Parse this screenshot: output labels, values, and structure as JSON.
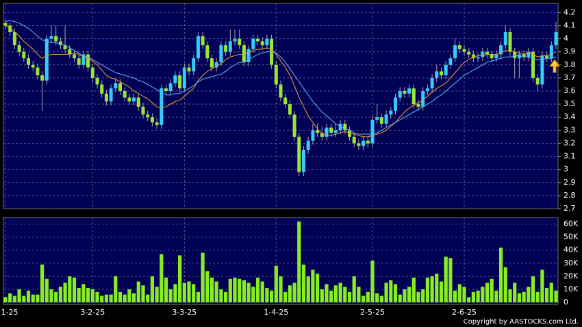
{
  "chart_data": {
    "type": "candlestick",
    "categories": [
      "1-25",
      null,
      null,
      null,
      null,
      null,
      null,
      null,
      null,
      null,
      null,
      null,
      null,
      null,
      null,
      null,
      null,
      null,
      null,
      "3-2-25",
      null,
      null,
      null,
      null,
      null,
      null,
      null,
      null,
      null,
      null,
      null,
      null,
      null,
      null,
      null,
      null,
      null,
      null,
      null,
      "3-3-25",
      null,
      null,
      null,
      null,
      null,
      null,
      null,
      null,
      null,
      null,
      null,
      null,
      null,
      null,
      null,
      null,
      null,
      null,
      null,
      "1-4-25",
      null,
      null,
      null,
      null,
      null,
      null,
      null,
      null,
      null,
      null,
      null,
      null,
      null,
      null,
      null,
      null,
      null,
      null,
      null,
      null,
      "2-5-25",
      null,
      null,
      null,
      null,
      null,
      null,
      null,
      null,
      null,
      null,
      null,
      null,
      null,
      null,
      null,
      null,
      null,
      null,
      null,
      "2-6-25",
      null,
      null,
      null,
      null,
      null,
      null,
      null,
      null,
      null,
      null,
      null,
      null,
      null,
      null,
      null,
      null,
      null,
      null,
      null,
      null
    ],
    "open": [
      4.12,
      4.1,
      4.05,
      3.95,
      3.9,
      3.85,
      3.8,
      3.78,
      3.72,
      3.68,
      4.0,
      4.02,
      3.98,
      3.95,
      3.92,
      3.88,
      3.85,
      3.8,
      3.88,
      3.78,
      3.7,
      3.65,
      3.58,
      3.52,
      3.62,
      3.66,
      3.6,
      3.55,
      3.52,
      3.55,
      3.48,
      3.42,
      3.4,
      3.36,
      3.34,
      3.62,
      3.6,
      3.66,
      3.72,
      3.62,
      3.78,
      3.75,
      3.85,
      4.02,
      3.95,
      3.85,
      3.78,
      3.82,
      3.95,
      3.9,
      3.98,
      4.0,
      3.95,
      3.82,
      3.92,
      4.0,
      3.98,
      3.95,
      4.0,
      3.8,
      3.65,
      3.55,
      3.5,
      3.42,
      3.25,
      2.98,
      3.15,
      3.22,
      3.3,
      3.28,
      3.25,
      3.32,
      3.28,
      3.3,
      3.35,
      3.3,
      3.25,
      3.2,
      3.18,
      3.22,
      3.2,
      3.38,
      3.4,
      3.35,
      3.42,
      3.45,
      3.55,
      3.6,
      3.58,
      3.62,
      3.5,
      3.48,
      3.6,
      3.62,
      3.7,
      3.75,
      3.72,
      3.8,
      3.85,
      3.95,
      3.92,
      3.9,
      3.88,
      3.85,
      3.86,
      3.9,
      3.88,
      3.85,
      3.88,
      3.95,
      4.05,
      3.9,
      3.85,
      3.88,
      3.86,
      3.9,
      3.7,
      3.65,
      3.87,
      3.85,
      3.95
    ],
    "high": [
      4.15,
      4.12,
      4.08,
      3.98,
      3.93,
      3.88,
      3.83,
      3.81,
      3.75,
      4.03,
      4.1,
      4.1,
      4.01,
      4.1,
      3.95,
      3.91,
      3.88,
      3.91,
      3.91,
      3.81,
      3.73,
      3.68,
      3.61,
      3.65,
      3.69,
      3.69,
      3.63,
      3.58,
      3.58,
      3.58,
      3.51,
      3.45,
      3.43,
      3.39,
      3.65,
      3.65,
      3.69,
      3.75,
      3.75,
      3.81,
      3.81,
      3.88,
      4.05,
      4.05,
      3.98,
      3.88,
      3.85,
      3.98,
      3.98,
      4.07,
      4.07,
      4.07,
      3.98,
      3.95,
      4.03,
      4.03,
      4.01,
      4.03,
      4.03,
      3.83,
      3.68,
      3.58,
      3.53,
      3.45,
      3.28,
      3.18,
      3.25,
      3.35,
      3.35,
      3.33,
      3.35,
      3.35,
      3.35,
      3.38,
      3.38,
      3.33,
      3.28,
      3.23,
      3.25,
      3.25,
      3.41,
      3.5,
      3.43,
      3.45,
      3.48,
      3.58,
      3.63,
      3.63,
      3.65,
      3.65,
      3.53,
      3.63,
      3.65,
      3.73,
      3.8,
      3.78,
      3.83,
      3.88,
      4.0,
      3.98,
      3.95,
      3.93,
      3.91,
      3.89,
      3.93,
      3.93,
      3.91,
      3.91,
      3.98,
      4.1,
      4.08,
      3.93,
      3.91,
      3.91,
      3.93,
      3.93,
      3.73,
      3.9,
      3.9,
      3.98,
      4.13
    ],
    "low": [
      4.07,
      4.02,
      3.92,
      3.87,
      3.82,
      3.77,
      3.75,
      3.69,
      3.45,
      3.65,
      3.97,
      3.95,
      3.92,
      3.89,
      3.85,
      3.82,
      3.77,
      3.77,
      3.75,
      3.67,
      3.62,
      3.55,
      3.49,
      3.49,
      3.59,
      3.57,
      3.52,
      3.49,
      3.49,
      3.45,
      3.39,
      3.37,
      3.33,
      3.31,
      3.31,
      3.57,
      3.57,
      3.63,
      3.59,
      3.59,
      3.72,
      3.72,
      3.82,
      3.92,
      3.82,
      3.75,
      3.75,
      3.79,
      3.87,
      3.87,
      3.95,
      3.92,
      3.79,
      3.79,
      3.89,
      3.95,
      3.92,
      3.92,
      3.77,
      3.62,
      3.52,
      3.47,
      3.39,
      3.22,
      2.95,
      2.95,
      3.12,
      3.19,
      3.25,
      3.22,
      3.22,
      3.25,
      3.25,
      3.27,
      3.27,
      3.22,
      3.17,
      3.15,
      3.15,
      3.17,
      3.17,
      3.35,
      3.32,
      3.32,
      3.39,
      3.42,
      3.52,
      3.55,
      3.55,
      3.47,
      3.45,
      3.45,
      3.57,
      3.59,
      3.67,
      3.69,
      3.69,
      3.77,
      3.82,
      3.89,
      3.87,
      3.85,
      3.82,
      3.82,
      3.83,
      3.85,
      3.82,
      3.82,
      3.85,
      3.92,
      3.87,
      3.7,
      3.7,
      3.83,
      3.83,
      3.67,
      3.6,
      3.62,
      3.82,
      3.82,
      3.92
    ],
    "close": [
      4.1,
      4.05,
      3.95,
      3.9,
      3.85,
      3.8,
      3.78,
      3.72,
      3.68,
      4.0,
      4.02,
      3.98,
      3.95,
      3.92,
      3.88,
      3.85,
      3.8,
      3.88,
      3.78,
      3.7,
      3.65,
      3.58,
      3.52,
      3.62,
      3.66,
      3.6,
      3.55,
      3.52,
      3.55,
      3.48,
      3.42,
      3.4,
      3.36,
      3.34,
      3.62,
      3.6,
      3.66,
      3.72,
      3.62,
      3.78,
      3.75,
      3.85,
      4.02,
      3.95,
      3.85,
      3.78,
      3.82,
      3.95,
      3.9,
      3.98,
      4.0,
      3.95,
      3.82,
      3.92,
      4.0,
      3.98,
      3.95,
      4.0,
      3.8,
      3.65,
      3.55,
      3.5,
      3.42,
      3.25,
      2.98,
      3.15,
      3.22,
      3.3,
      3.28,
      3.25,
      3.32,
      3.28,
      3.3,
      3.35,
      3.3,
      3.25,
      3.2,
      3.18,
      3.22,
      3.2,
      3.38,
      3.4,
      3.35,
      3.42,
      3.45,
      3.55,
      3.6,
      3.58,
      3.62,
      3.5,
      3.48,
      3.6,
      3.62,
      3.7,
      3.75,
      3.72,
      3.8,
      3.85,
      3.95,
      3.92,
      3.9,
      3.88,
      3.85,
      3.86,
      3.9,
      3.88,
      3.85,
      3.88,
      3.95,
      4.05,
      3.9,
      3.85,
      3.88,
      3.86,
      3.9,
      3.7,
      3.65,
      3.87,
      3.85,
      3.95,
      4.05
    ],
    "up_color": "#33ccff",
    "down_color": "#99e633",
    "moving_averages": [
      {
        "color": "#e8952f",
        "values": [
          4.1,
          4.08,
          4.05,
          4.02,
          3.98,
          3.95,
          3.92,
          3.88,
          3.85,
          3.87,
          3.88,
          3.88,
          3.88,
          3.88,
          3.88,
          3.89,
          3.88,
          3.86,
          3.85,
          3.83,
          3.8,
          3.76,
          3.72,
          3.7,
          3.69,
          3.67,
          3.65,
          3.63,
          3.6,
          3.58,
          3.56,
          3.54,
          3.51,
          3.48,
          3.47,
          3.48,
          3.5,
          3.52,
          3.53,
          3.56,
          3.59,
          3.62,
          3.68,
          3.72,
          3.75,
          3.77,
          3.79,
          3.81,
          3.84,
          3.86,
          3.87,
          3.88,
          3.88,
          3.89,
          3.91,
          3.92,
          3.92,
          3.93,
          3.92,
          3.88,
          3.83,
          3.78,
          3.72,
          3.64,
          3.55,
          3.48,
          3.41,
          3.36,
          3.31,
          3.27,
          3.26,
          3.26,
          3.27,
          3.28,
          3.29,
          3.28,
          3.27,
          3.26,
          3.25,
          3.25,
          3.26,
          3.27,
          3.28,
          3.3,
          3.33,
          3.36,
          3.4,
          3.44,
          3.47,
          3.49,
          3.51,
          3.53,
          3.56,
          3.59,
          3.62,
          3.64,
          3.66,
          3.7,
          3.74,
          3.78,
          3.82,
          3.84,
          3.86,
          3.87,
          3.87,
          3.88,
          3.88,
          3.88,
          3.89,
          3.91,
          3.91,
          3.9,
          3.89,
          3.88,
          3.89,
          3.88,
          3.86,
          3.87,
          3.87,
          3.88,
          3.9
        ]
      },
      {
        "color": "#5aaee8",
        "values": [
          4.13,
          4.14,
          4.13,
          4.12,
          4.1,
          4.08,
          4.05,
          4.02,
          3.99,
          3.98,
          3.97,
          3.97,
          3.96,
          3.95,
          3.93,
          3.91,
          3.89,
          3.87,
          3.86,
          3.84,
          3.82,
          3.8,
          3.78,
          3.76,
          3.74,
          3.73,
          3.72,
          3.71,
          3.7,
          3.68,
          3.67,
          3.65,
          3.63,
          3.61,
          3.59,
          3.57,
          3.57,
          3.58,
          3.58,
          3.6,
          3.62,
          3.64,
          3.67,
          3.69,
          3.7,
          3.71,
          3.72,
          3.73,
          3.75,
          3.78,
          3.8,
          3.82,
          3.82,
          3.84,
          3.86,
          3.88,
          3.89,
          3.9,
          3.9,
          3.89,
          3.86,
          3.82,
          3.77,
          3.72,
          3.67,
          3.62,
          3.57,
          3.52,
          3.48,
          3.44,
          3.41,
          3.38,
          3.35,
          3.33,
          3.31,
          3.3,
          3.28,
          3.27,
          3.27,
          3.27,
          3.27,
          3.28,
          3.3,
          3.32,
          3.34,
          3.36,
          3.38,
          3.4,
          3.42,
          3.44,
          3.46,
          3.48,
          3.5,
          3.52,
          3.55,
          3.57,
          3.6,
          3.63,
          3.66,
          3.69,
          3.72,
          3.74,
          3.76,
          3.78,
          3.8,
          3.82,
          3.83,
          3.84,
          3.85,
          3.86,
          3.86,
          3.87,
          3.87,
          3.86,
          3.86,
          3.85,
          3.84,
          3.84,
          3.85,
          3.85,
          3.86
        ]
      }
    ],
    "ylim": [
      2.7,
      4.27
    ],
    "yticks": [
      2.7,
      2.8,
      2.9,
      3,
      3.1,
      3.2,
      3.3,
      3.4,
      3.5,
      3.6,
      3.7,
      3.8,
      3.9,
      4,
      4.1,
      4.2
    ],
    "grid": true,
    "volume": {
      "color": "#88ee22",
      "values": [
        4,
        7,
        5,
        10,
        5,
        9,
        6,
        6,
        29,
        18,
        10,
        8,
        12,
        15,
        20,
        19,
        11,
        14,
        11,
        10,
        8,
        5,
        6,
        6,
        20,
        8,
        6,
        10,
        7,
        16,
        13,
        6,
        20,
        12,
        37,
        19,
        10,
        14,
        36,
        15,
        16,
        14,
        8,
        38,
        24,
        19,
        16,
        10,
        8,
        18,
        19,
        18,
        17,
        15,
        12,
        19,
        16,
        11,
        9,
        28,
        20,
        8,
        13,
        15,
        62,
        29,
        20,
        25,
        22,
        10,
        14,
        9,
        13,
        15,
        12,
        8,
        20,
        12,
        5,
        8,
        32,
        7,
        5,
        15,
        17,
        14,
        6,
        10,
        12,
        19,
        8,
        10,
        19,
        20,
        22,
        16,
        35,
        34,
        9,
        14,
        12,
        4,
        8,
        9,
        12,
        15,
        18,
        9,
        42,
        27,
        10,
        15,
        7,
        8,
        12,
        20,
        8,
        25,
        11,
        15,
        9
      ],
      "ylim": [
        0,
        65
      ],
      "yticks": [
        0,
        {
          "value": 10,
          "label": "10K"
        },
        {
          "value": 20,
          "label": "20K"
        },
        {
          "value": 30,
          "label": "30K"
        },
        {
          "value": 40,
          "label": "40K"
        },
        {
          "value": 50,
          "label": "50K"
        },
        {
          "value": 60,
          "label": "60K"
        }
      ]
    },
    "copyright": "Copyright by AASTOCKS.com Ltd."
  }
}
